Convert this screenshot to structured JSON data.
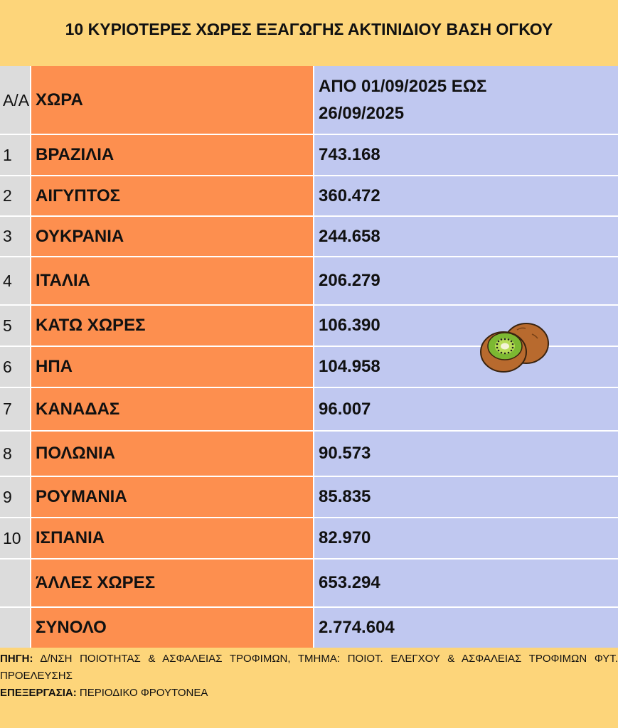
{
  "header": {
    "title": "10 ΚΥΡΙΟΤΕΡΕΣ ΧΩΡΕΣ ΕΞΑΓΩΓΗΣ ΑΚΤΙΝΙΔΙΟΥ ΒΑΣΗ ΟΓΚΟΥ"
  },
  "table": {
    "columns": [
      "Α/Α",
      "ΧΩΡΑ",
      "ΑΠΟ 01/09/2025 ΕΩΣ 26/09/2025"
    ],
    "rows": [
      [
        "1",
        "ΒΡΑΖΙΛΙΑ",
        "743.168"
      ],
      [
        "2",
        "ΑΙΓΥΠΤΟΣ",
        "360.472"
      ],
      [
        "3",
        "ΟΥΚΡΑΝΙΑ",
        "244.658"
      ],
      [
        "4",
        "ΙΤΑΛΙΑ",
        "206.279"
      ],
      [
        "5",
        "ΚΑΤΩ ΧΩΡΕΣ",
        "106.390"
      ],
      [
        "6",
        "ΗΠΑ",
        "104.958"
      ],
      [
        "7",
        "ΚΑΝΑΔΑΣ",
        "96.007"
      ],
      [
        "8",
        "ΠΟΛΩΝΙΑ",
        "90.573"
      ],
      [
        "9",
        "ΡΟΥΜΑΝΙΑ",
        "85.835"
      ],
      [
        "10",
        "ΙΣΠΑΝΙΑ",
        "82.970"
      ],
      [
        null,
        "ΆΛΛΕΣ ΧΩΡΕΣ",
        "653.294"
      ],
      [
        null,
        "ΣΥΝΟΛΟ",
        "2.774.604"
      ]
    ]
  },
  "footer": {
    "source_label": "ΠΗΓΗ:",
    "source": "Δ/ΝΣΗ ΠΟΙΟΤΗΤΑΣ & ΑΣΦΑΛΕΙΑΣ ΤΡΟΦΙΜΩΝ, ΤΜΗΜΑ: ΠΟΙΟΤ. ΕΛΕΓΧΟΥ & ΑΣΦΑΛΕΙΑΣ ΤΡΟΦΙΜΩΝ ΦΥΤ. ΠΡΟΕΛΕΥΣΗΣ",
    "processing_label": "ΕΠΕΞΕΡΓΑΣΙΑ:",
    "processing": "ΠΕΡΙΟΔΙΚΟ ΦΡΟΥΤΟΝΕΑ"
  }
}
